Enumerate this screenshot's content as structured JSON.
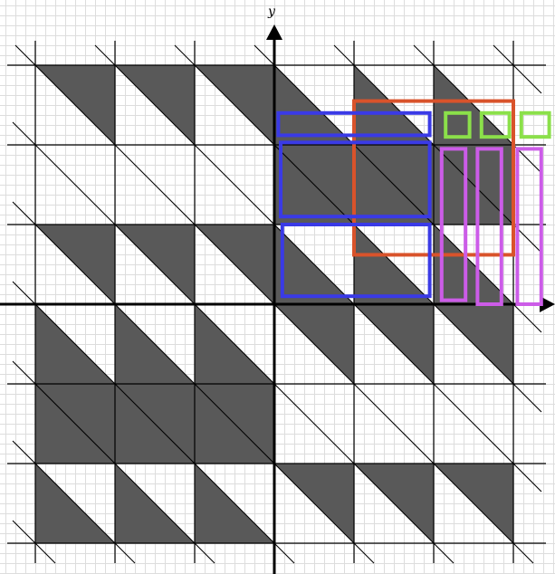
{
  "figure": {
    "y_label": "y",
    "x_range": [
      -3,
      3
    ],
    "y_range": [
      -3,
      3
    ],
    "tile_columns": [
      [
        0,
        0,
        0,
        1,
        1,
        1
      ],
      [
        1,
        0,
        1,
        0,
        1,
        0
      ],
      [
        0,
        0,
        0,
        1,
        1,
        1
      ],
      [
        1,
        0,
        1,
        0,
        1,
        0
      ],
      [
        0,
        0,
        0,
        1,
        1,
        1
      ],
      [
        1,
        0,
        1,
        0,
        1,
        0
      ],
      [
        1,
        1,
        1,
        0,
        0,
        0
      ],
      [
        0,
        1,
        0,
        1,
        0,
        1
      ],
      [
        1,
        1,
        1,
        0,
        0,
        0
      ],
      [
        0,
        1,
        0,
        1,
        0,
        1
      ],
      [
        1,
        1,
        1,
        0,
        0,
        0
      ],
      [
        0,
        1,
        0,
        1,
        0,
        1
      ]
    ],
    "colors": {
      "background": "#ffffff",
      "minor_grid": "#dddddd",
      "major_grid": "#000000",
      "tile_fill": "#595959",
      "axes": "#000000",
      "orange_box": "#d9532b",
      "blue_box": "#3a3ae6",
      "green_box": "#8be04a",
      "purple_box": "#cc5ce8"
    }
  },
  "highlight_boxes": [
    {
      "name": "orange-rect",
      "color": "orange_box",
      "x": [
        1.0,
        3.0
      ],
      "y": [
        0.62,
        2.55
      ]
    },
    {
      "name": "blue-rect-1",
      "color": "blue_box",
      "x": [
        0.05,
        1.95
      ],
      "y": [
        2.12,
        2.4
      ]
    },
    {
      "name": "blue-rect-2",
      "color": "blue_box",
      "x": [
        0.08,
        1.95
      ],
      "y": [
        1.1,
        2.03
      ]
    },
    {
      "name": "blue-rect-3",
      "color": "blue_box",
      "x": [
        0.1,
        1.95
      ],
      "y": [
        0.1,
        1.0
      ]
    },
    {
      "name": "green-square-1",
      "color": "green_box",
      "x": [
        2.15,
        2.45
      ],
      "y": [
        2.1,
        2.4
      ]
    },
    {
      "name": "green-square-2",
      "color": "green_box",
      "x": [
        2.6,
        2.95
      ],
      "y": [
        2.1,
        2.4
      ]
    },
    {
      "name": "green-square-3",
      "color": "green_box",
      "x": [
        3.1,
        3.45
      ],
      "y": [
        2.1,
        2.4
      ]
    },
    {
      "name": "purple-rect-1",
      "color": "purple_box",
      "x": [
        2.1,
        2.4
      ],
      "y": [
        0.05,
        1.95
      ]
    },
    {
      "name": "purple-rect-2",
      "color": "purple_box",
      "x": [
        2.55,
        2.85
      ],
      "y": [
        0.0,
        1.95
      ]
    },
    {
      "name": "purple-rect-3",
      "color": "purple_box",
      "x": [
        3.05,
        3.35
      ],
      "y": [
        0.0,
        1.95
      ]
    }
  ]
}
